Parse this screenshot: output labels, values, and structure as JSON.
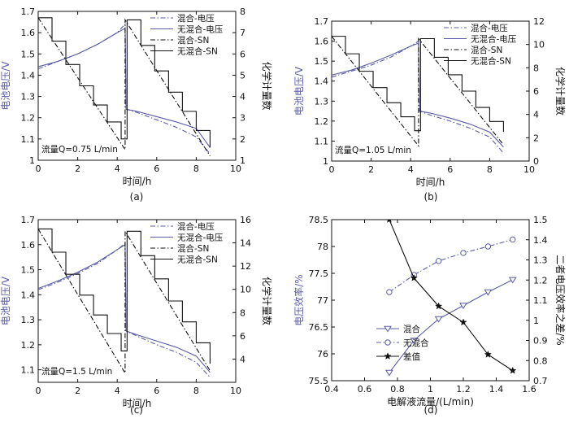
{
  "colors": {
    "blue": "#5B5BA8",
    "black": "#111111",
    "voltage_label": "#5B5BA8"
  },
  "chart_data": [
    {
      "type": "line",
      "sublabel": "(a)",
      "xlabel": "时间/h",
      "ylabel_left": "电池电压/V",
      "ylabel_right": "化学计量数",
      "xlim": [
        0,
        10
      ],
      "ylim_left": [
        1,
        1.7
      ],
      "ylim_right": [
        1,
        8
      ],
      "xticks": [
        0,
        2,
        4,
        6,
        8,
        10
      ],
      "yticks_left": [
        1,
        1.1,
        1.2,
        1.3,
        1.4,
        1.5,
        1.6,
        1.7
      ],
      "yticks_right": [
        1,
        2,
        3,
        4,
        5,
        6,
        7,
        8
      ],
      "annotation": "流量Q=0.75 L/min",
      "legend": [
        "混合-电压",
        "无混合-电压",
        "混合-SN",
        "无混合-SN"
      ],
      "series": [
        {
          "name": "混合-电压",
          "axis": "left",
          "style": "dashdot",
          "color": "blue",
          "x": [
            0,
            1,
            2,
            3,
            4,
            4.4,
            4.45,
            5,
            6,
            7,
            8,
            8.7
          ],
          "y": [
            1.43,
            1.465,
            1.5,
            1.545,
            1.6,
            1.64,
            1.24,
            1.225,
            1.19,
            1.155,
            1.11,
            1.03
          ]
        },
        {
          "name": "无混合-电压",
          "axis": "left",
          "style": "solid",
          "color": "blue",
          "x": [
            0,
            1,
            2,
            3,
            4,
            4.4,
            4.45,
            5,
            6,
            7,
            8,
            8.7
          ],
          "y": [
            1.44,
            1.465,
            1.5,
            1.545,
            1.6,
            1.62,
            1.24,
            1.23,
            1.205,
            1.18,
            1.15,
            1.06
          ]
        },
        {
          "name": "混合-SN",
          "axis": "right",
          "style": "dashdot",
          "color": "black",
          "x": [
            0,
            4.4,
            4.4,
            8.7
          ],
          "y": [
            7.7,
            1.5,
            7.6,
            1.2
          ]
        },
        {
          "name": "无混合-SN",
          "axis": "right",
          "style": "step",
          "color": "black",
          "x": [
            0,
            0.7,
            1.4,
            2.1,
            2.8,
            3.5,
            4.2,
            4.5,
            5.2,
            5.9,
            6.6,
            7.3,
            8.0,
            8.7
          ],
          "y": [
            7.7,
            6.6,
            5.5,
            4.5,
            3.6,
            2.8,
            2.0,
            7.6,
            6.4,
            5.2,
            4.2,
            3.3,
            2.4,
            1.6
          ]
        }
      ]
    },
    {
      "type": "line",
      "sublabel": "(b)",
      "xlabel": "时间/h",
      "ylabel_left": "电池电压/V",
      "ylabel_right": "化学计量数",
      "xlim": [
        0,
        10
      ],
      "ylim_left": [
        1,
        1.7
      ],
      "ylim_right": [
        0,
        12
      ],
      "xticks": [
        0,
        2,
        4,
        6,
        8,
        10
      ],
      "yticks_left": [
        1,
        1.1,
        1.2,
        1.3,
        1.4,
        1.5,
        1.6,
        1.7
      ],
      "yticks_right": [
        0,
        2,
        4,
        6,
        8,
        10,
        12
      ],
      "annotation": "流量Q=1.05 L/min",
      "legend": [
        "混合-电压",
        "无混合-电压",
        "混合-SN",
        "无混合-SN"
      ],
      "series": [
        {
          "name": "混合-电压",
          "axis": "left",
          "style": "dashdot",
          "color": "blue",
          "x": [
            0,
            1,
            2,
            3,
            4,
            4.4,
            4.45,
            5,
            6,
            7,
            8,
            8.7
          ],
          "y": [
            1.42,
            1.45,
            1.48,
            1.52,
            1.575,
            1.6,
            1.25,
            1.23,
            1.2,
            1.165,
            1.12,
            1.04
          ]
        },
        {
          "name": "无混合-电压",
          "axis": "left",
          "style": "solid",
          "color": "blue",
          "x": [
            0,
            1,
            2,
            3,
            4,
            4.4,
            4.45,
            5,
            6,
            7,
            8,
            8.7
          ],
          "y": [
            1.43,
            1.455,
            1.49,
            1.53,
            1.575,
            1.59,
            1.25,
            1.24,
            1.215,
            1.185,
            1.145,
            1.07
          ]
        },
        {
          "name": "混合-SN",
          "axis": "right",
          "style": "dashdot",
          "color": "black",
          "x": [
            0,
            4.4,
            4.4,
            8.7
          ],
          "y": [
            10.7,
            1.3,
            10.5,
            1.4
          ]
        },
        {
          "name": "无混合-SN",
          "axis": "right",
          "style": "step",
          "color": "black",
          "x": [
            0,
            0.7,
            1.4,
            2.1,
            2.8,
            3.5,
            4.2,
            4.5,
            5.2,
            5.9,
            6.6,
            7.3,
            8.0,
            8.7
          ],
          "y": [
            10.7,
            9.2,
            7.7,
            6.3,
            5.0,
            3.8,
            2.6,
            10.5,
            8.9,
            7.4,
            6.0,
            4.6,
            3.4,
            2.5
          ]
        }
      ]
    },
    {
      "type": "line",
      "sublabel": "(c)",
      "xlabel": "时间/h",
      "ylabel_left": "电池电压/V",
      "ylabel_right": "化学计量数",
      "xlim": [
        0,
        10
      ],
      "ylim_left": [
        1.05,
        1.7
      ],
      "ylim_right": [
        2,
        16
      ],
      "xticks": [
        0,
        2,
        4,
        6,
        8,
        10
      ],
      "yticks_left": [
        1.1,
        1.2,
        1.3,
        1.4,
        1.5,
        1.6,
        1.7
      ],
      "yticks_right": [
        4,
        6,
        8,
        10,
        12,
        14,
        16
      ],
      "annotation": "流量Q=1.5 L/min",
      "legend": [
        "混合-电压",
        "无混合-电压",
        "混合-SN",
        "无混合-SN"
      ],
      "series": [
        {
          "name": "混合-电压",
          "axis": "left",
          "style": "dashdot",
          "color": "blue",
          "x": [
            0,
            1,
            2,
            3,
            4,
            4.4,
            4.45,
            5,
            6,
            7,
            8,
            8.7
          ],
          "y": [
            1.42,
            1.45,
            1.485,
            1.525,
            1.58,
            1.605,
            1.255,
            1.235,
            1.2,
            1.17,
            1.13,
            1.07
          ]
        },
        {
          "name": "无混合-电压",
          "axis": "left",
          "style": "solid",
          "color": "blue",
          "x": [
            0,
            1,
            2,
            3,
            4,
            4.4,
            4.45,
            5,
            6,
            7,
            8,
            8.7
          ],
          "y": [
            1.425,
            1.455,
            1.49,
            1.53,
            1.58,
            1.6,
            1.255,
            1.24,
            1.215,
            1.19,
            1.155,
            1.09
          ]
        },
        {
          "name": "混合-SN",
          "axis": "right",
          "style": "dashdot",
          "color": "black",
          "x": [
            0,
            4.4,
            4.4,
            8.7
          ],
          "y": [
            15.2,
            2.8,
            15.0,
            3.0
          ]
        },
        {
          "name": "无混合-SN",
          "axis": "right",
          "style": "step",
          "color": "black",
          "x": [
            0,
            0.7,
            1.4,
            2.1,
            2.8,
            3.5,
            4.2,
            4.5,
            5.2,
            5.9,
            6.6,
            7.3,
            8.0,
            8.7
          ],
          "y": [
            15.2,
            13.2,
            11.3,
            9.5,
            7.8,
            6.2,
            4.7,
            15.0,
            12.9,
            10.9,
            9.0,
            7.2,
            5.4,
            3.6
          ]
        }
      ]
    },
    {
      "type": "line",
      "sublabel": "(d)",
      "xlabel": "电解液流量/(L/min)",
      "ylabel_left": "电压效率/%",
      "ylabel_right": "二者电压效率之差/%",
      "xlim": [
        0.4,
        1.6
      ],
      "ylim_left": [
        75.5,
        78.5
      ],
      "ylim_right": [
        0.7,
        1.5
      ],
      "xticks": [
        0.4,
        0.6,
        0.8,
        1.0,
        1.2,
        1.4,
        1.6
      ],
      "xtick_labels": [
        "0.4",
        "0.6",
        "0.8",
        "1",
        "1.2",
        "1.4",
        "1.6"
      ],
      "yticks_left": [
        75.5,
        76,
        76.5,
        77,
        77.5,
        78,
        78.5
      ],
      "yticks_right": [
        0.7,
        0.8,
        0.9,
        1.0,
        1.1,
        1.2,
        1.3,
        1.4,
        1.5
      ],
      "ytick_labels_right": [
        "0.7",
        "0.8",
        "0.9",
        "1",
        "1.1",
        "1.2",
        "1.3",
        "1.4",
        "1.5"
      ],
      "legend": [
        "混合",
        "无混合",
        "差值"
      ],
      "series": [
        {
          "name": "混合",
          "axis": "left",
          "style": "solid",
          "color": "blue",
          "marker": "triangle-down",
          "x": [
            0.75,
            0.9,
            1.05,
            1.2,
            1.35,
            1.5
          ],
          "y": [
            75.65,
            76.25,
            76.65,
            76.9,
            77.15,
            77.38
          ]
        },
        {
          "name": "无混合",
          "axis": "left",
          "style": "dashdot",
          "color": "blue",
          "marker": "circle",
          "x": [
            0.75,
            0.9,
            1.05,
            1.2,
            1.35,
            1.5
          ],
          "y": [
            77.15,
            77.47,
            77.73,
            77.88,
            78.0,
            78.13
          ]
        },
        {
          "name": "差值",
          "axis": "right",
          "style": "solid",
          "color": "black",
          "marker": "star",
          "x": [
            0.75,
            0.9,
            1.05,
            1.2,
            1.35,
            1.5
          ],
          "y": [
            1.5,
            1.21,
            1.07,
            0.99,
            0.83,
            0.75
          ]
        }
      ]
    }
  ]
}
